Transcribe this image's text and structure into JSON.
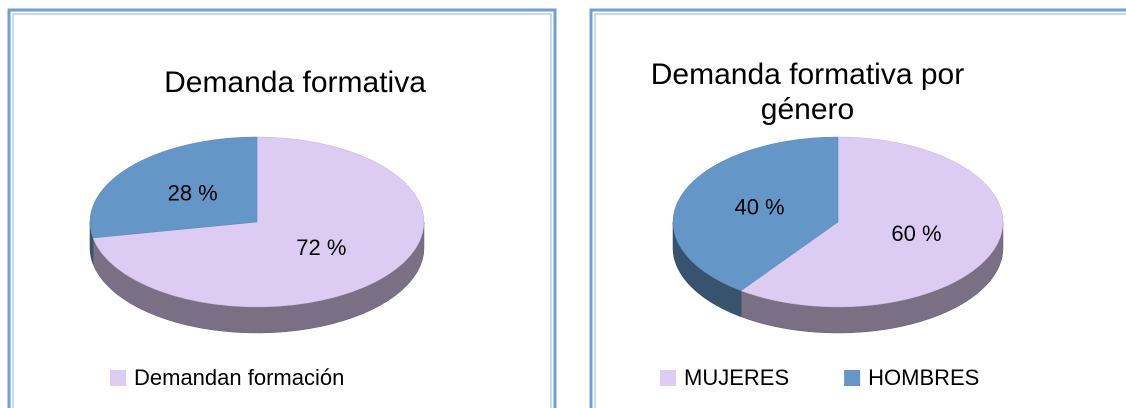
{
  "chart_data": [
    {
      "type": "pie",
      "title": "Demanda formativa",
      "categories": [
        "Demandan formación",
        null
      ],
      "values": [
        72,
        28
      ],
      "value_labels": [
        "72 %",
        "28 %"
      ],
      "colors": [
        "#dccbf2",
        "#6596c8"
      ]
    },
    {
      "type": "pie",
      "title": "Demanda formativa por género",
      "categories": [
        "MUJERES",
        "HOMBRES"
      ],
      "values": [
        60,
        40
      ],
      "value_labels": [
        "60 %",
        "40 %"
      ],
      "colors": [
        "#dccbf2",
        "#6596c8"
      ]
    }
  ]
}
